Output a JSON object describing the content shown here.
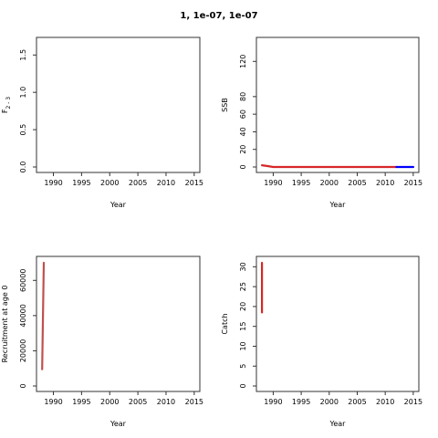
{
  "figure": {
    "title": "1, 1e-07, 1e-07"
  },
  "colors": {
    "estimate": "#d62728",
    "projection": "#0000ff",
    "recruit_line": "#c0504d"
  },
  "chart_data": [
    {
      "id": "F",
      "type": "line",
      "xlabel": "Year",
      "ylabel_main": "F",
      "ylabel_sub": "2 - 3",
      "xlim": [
        1987,
        2016
      ],
      "ylim": [
        0,
        1.65
      ],
      "xticks": [
        1990,
        1995,
        2000,
        2005,
        2010,
        2015
      ],
      "yticks": [
        0.0,
        0.5,
        1.0,
        1.5
      ],
      "ytick_labels": [
        "0.0",
        "0.5",
        "1.0",
        "1.5"
      ],
      "series": []
    },
    {
      "id": "SSB",
      "type": "line",
      "xlabel": "Year",
      "ylabel": "SSB",
      "xlim": [
        1987,
        2016
      ],
      "ylim": [
        0,
        140
      ],
      "xticks": [
        1990,
        1995,
        2000,
        2005,
        2010,
        2015
      ],
      "yticks": [
        0,
        20,
        40,
        60,
        80,
        120
      ],
      "ytick_labels": [
        "0",
        "20",
        "40",
        "60",
        "80",
        "120"
      ],
      "series": [
        {
          "color_key": "estimate",
          "x": [
            1988,
            1989,
            1990,
            1995,
            2000,
            2005,
            2010,
            2012
          ],
          "y": [
            2,
            1,
            0,
            0,
            0,
            0,
            0,
            0
          ]
        },
        {
          "color_key": "projection",
          "x": [
            2012,
            2013,
            2014,
            2015
          ],
          "y": [
            0,
            0,
            0,
            0
          ]
        }
      ]
    },
    {
      "id": "Recruitment",
      "type": "line",
      "xlabel": "Year",
      "ylabel": "Recruitment at age 0",
      "xlim": [
        1987,
        2016
      ],
      "ylim": [
        0,
        70000
      ],
      "xticks": [
        1990,
        1995,
        2000,
        2005,
        2010,
        2015
      ],
      "yticks": [
        0,
        20000,
        40000,
        60000
      ],
      "ytick_labels": [
        "0",
        "20000",
        "40000",
        "60000"
      ],
      "series": [
        {
          "color_key": "recruit_line",
          "x": [
            1988,
            1988.3
          ],
          "y": [
            9500,
            70000
          ]
        }
      ]
    },
    {
      "id": "Catch",
      "type": "line",
      "xlabel": "Year",
      "ylabel": "Catch",
      "xlim": [
        1987,
        2016
      ],
      "ylim": [
        0,
        31
      ],
      "xticks": [
        1990,
        1995,
        2000,
        2005,
        2010,
        2015
      ],
      "yticks": [
        0,
        5,
        10,
        15,
        20,
        25,
        30
      ],
      "ytick_labels": [
        "0",
        "5",
        "10",
        "15",
        "20",
        "25",
        "30"
      ],
      "series": [
        {
          "color_key": "estimate",
          "x": [
            1988,
            1988,
            1988
          ],
          "y": [
            31,
            18.5,
            31
          ]
        }
      ]
    }
  ]
}
